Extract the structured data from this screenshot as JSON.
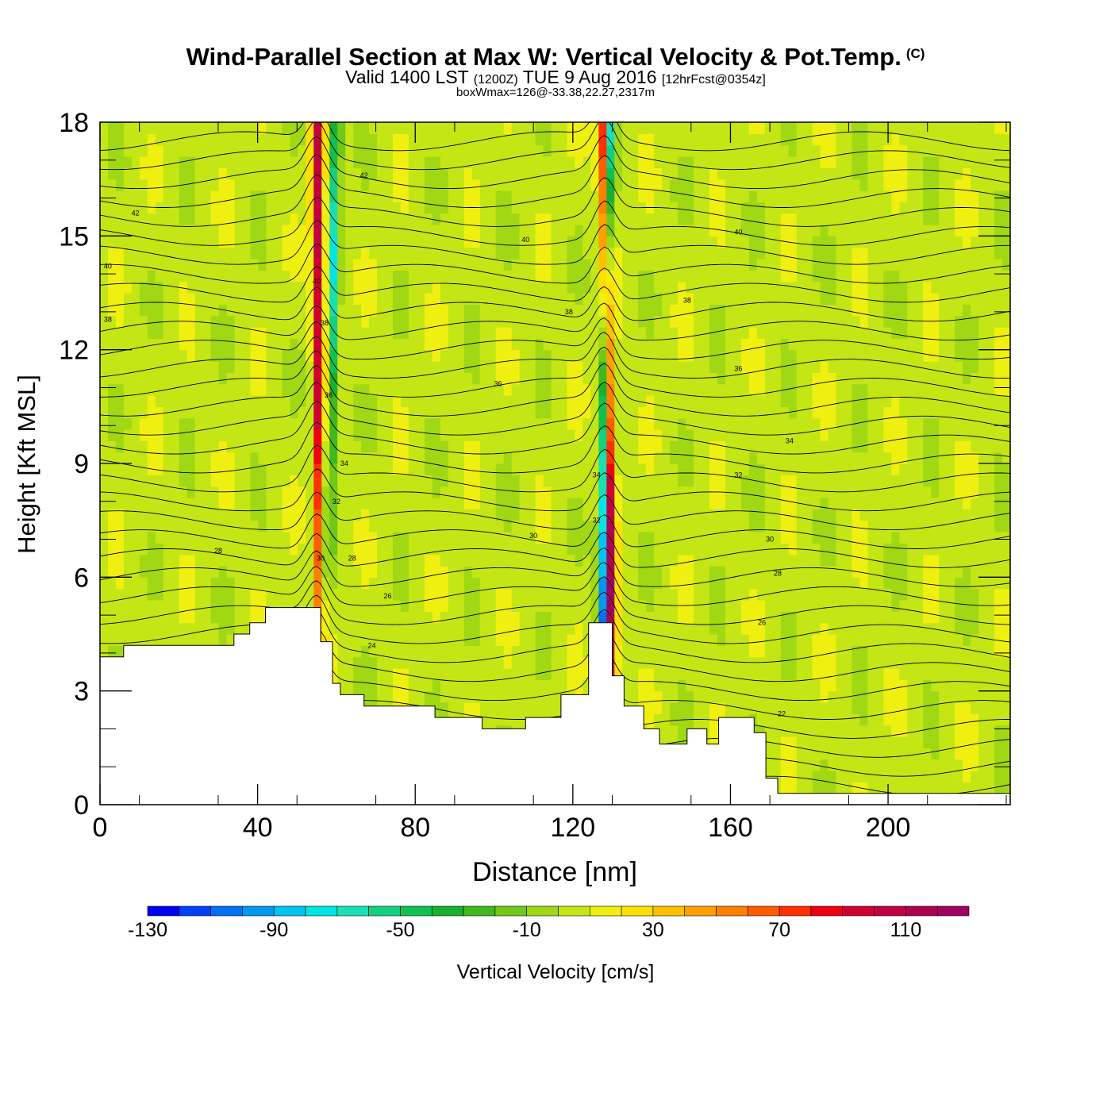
{
  "title": {
    "main": "Wind-Parallel Section at Max W: Vertical Velocity & Pot.Temp.",
    "copyright": "(C)",
    "valid_prefix": "Valid 1400 LST",
    "valid_utc": "(1200Z)",
    "valid_date": "TUE 9 Aug 2016",
    "forecast": "[12hrFcst@0354z]",
    "box_wmax": "boxWmax=126@-33.38,22.27,2317m"
  },
  "chart_data": {
    "type": "heatmap",
    "xlabel": "Distance [nm]",
    "ylabel": "Height [Kft MSL]",
    "xlim": [
      0,
      231
    ],
    "ylim": [
      0,
      18
    ],
    "x_ticks": [
      "0",
      "40",
      "80",
      "120",
      "160",
      "200"
    ],
    "y_ticks": [
      "0",
      "3",
      "6",
      "9",
      "12",
      "15",
      "18"
    ],
    "colorbar": {
      "label": "Vertical Velocity [cm/s]",
      "min": -130,
      "max": 130,
      "step": 10,
      "tick_labels": [
        "-130",
        "-90",
        "-50",
        "-10",
        "30",
        "70",
        "110"
      ],
      "colors": [
        "#0000f0",
        "#0040f5",
        "#0070f5",
        "#0098f0",
        "#00c4f0",
        "#00e6e6",
        "#18e0b4",
        "#14d080",
        "#10c050",
        "#18b030",
        "#40b820",
        "#70c818",
        "#a0d814",
        "#c4e614",
        "#f0f010",
        "#ffe000",
        "#ffc000",
        "#ffa000",
        "#ff8000",
        "#ff5c00",
        "#ff3000",
        "#f00010",
        "#d00030",
        "#c00040",
        "#b00050",
        "#a00060"
      ]
    },
    "background_w": 5,
    "updrafts": [
      {
        "x_base": 57,
        "x_top": 55,
        "peak_w": 100
      },
      {
        "x_base": 130,
        "x_top": 128,
        "peak_w": 126
      }
    ],
    "downdrafts": [
      {
        "x_base": 56,
        "x_top": 60,
        "peak_w": -70
      },
      {
        "x_base": 127,
        "x_top": 129,
        "peak_w": -130
      }
    ],
    "terrain": [
      [
        0,
        3.9
      ],
      [
        6,
        3.9
      ],
      [
        6,
        4.2
      ],
      [
        34,
        4.2
      ],
      [
        34,
        4.5
      ],
      [
        38,
        4.5
      ],
      [
        38,
        4.8
      ],
      [
        42,
        4.8
      ],
      [
        42,
        5.2
      ],
      [
        56,
        5.2
      ],
      [
        56,
        4.3
      ],
      [
        59,
        4.3
      ],
      [
        59,
        3.2
      ],
      [
        61,
        3.2
      ],
      [
        61,
        2.9
      ],
      [
        67,
        2.9
      ],
      [
        67,
        2.6
      ],
      [
        85,
        2.6
      ],
      [
        85,
        2.3
      ],
      [
        97,
        2.3
      ],
      [
        97,
        2.0
      ],
      [
        108,
        2.0
      ],
      [
        108,
        2.3
      ],
      [
        117,
        2.3
      ],
      [
        117,
        2.9
      ],
      [
        124,
        2.9
      ],
      [
        124,
        4.8
      ],
      [
        130,
        4.8
      ],
      [
        130,
        3.4
      ],
      [
        133,
        3.4
      ],
      [
        133,
        2.6
      ],
      [
        138,
        2.6
      ],
      [
        138,
        2.0
      ],
      [
        142,
        2.0
      ],
      [
        142,
        1.6
      ],
      [
        149,
        1.6
      ],
      [
        149,
        2.0
      ],
      [
        154,
        2.0
      ],
      [
        154,
        1.6
      ],
      [
        157,
        1.6
      ],
      [
        157,
        2.3
      ],
      [
        166,
        2.3
      ],
      [
        166,
        1.9
      ],
      [
        169,
        1.9
      ],
      [
        169,
        0.7
      ],
      [
        172,
        0.7
      ],
      [
        172,
        0.3
      ],
      [
        231,
        0.3
      ]
    ],
    "theta_contours": [
      {
        "label": "22",
        "y": 2.4
      },
      {
        "label": "24",
        "y": 4.0
      },
      {
        "label": "26",
        "y": 4.8
      },
      {
        "label": "28",
        "y": 6.5
      },
      {
        "label": "30",
        "y": 7.0
      },
      {
        "label": "32",
        "y": 8.8
      },
      {
        "label": "34",
        "y": 9.6
      },
      {
        "label": "36",
        "y": 11.0
      },
      {
        "label": "38",
        "y": 12.8
      },
      {
        "label": "40",
        "y": 14.3
      },
      {
        "label": "42",
        "y": 15.7
      }
    ],
    "contour_labels": [
      {
        "text": "42",
        "x": 9,
        "y": 15.6
      },
      {
        "text": "40",
        "x": 2,
        "y": 14.2
      },
      {
        "text": "38",
        "x": 2,
        "y": 12.8
      },
      {
        "text": "28",
        "x": 30,
        "y": 6.7
      },
      {
        "text": "40",
        "x": 55,
        "y": 13.8
      },
      {
        "text": "38",
        "x": 57,
        "y": 12.7
      },
      {
        "text": "36",
        "x": 58,
        "y": 10.8
      },
      {
        "text": "34",
        "x": 62,
        "y": 9.0
      },
      {
        "text": "32",
        "x": 60,
        "y": 8.0
      },
      {
        "text": "30",
        "x": 56,
        "y": 6.5
      },
      {
        "text": "28",
        "x": 64,
        "y": 6.5
      },
      {
        "text": "26",
        "x": 73,
        "y": 5.5
      },
      {
        "text": "24",
        "x": 69,
        "y": 4.2
      },
      {
        "text": "42",
        "x": 67,
        "y": 16.6
      },
      {
        "text": "40",
        "x": 108,
        "y": 14.9
      },
      {
        "text": "38",
        "x": 119,
        "y": 13.0
      },
      {
        "text": "36",
        "x": 101,
        "y": 11.1
      },
      {
        "text": "30",
        "x": 110,
        "y": 7.1
      },
      {
        "text": "34",
        "x": 126,
        "y": 8.7
      },
      {
        "text": "32",
        "x": 126,
        "y": 7.5
      },
      {
        "text": "40",
        "x": 162,
        "y": 15.1
      },
      {
        "text": "38",
        "x": 149,
        "y": 13.3
      },
      {
        "text": "36",
        "x": 162,
        "y": 11.5
      },
      {
        "text": "34",
        "x": 175,
        "y": 9.6
      },
      {
        "text": "32",
        "x": 162,
        "y": 8.7
      },
      {
        "text": "30",
        "x": 170,
        "y": 7.0
      },
      {
        "text": "28",
        "x": 172,
        "y": 6.1
      },
      {
        "text": "26",
        "x": 168,
        "y": 4.8
      },
      {
        "text": "22",
        "x": 173,
        "y": 2.4
      }
    ]
  }
}
